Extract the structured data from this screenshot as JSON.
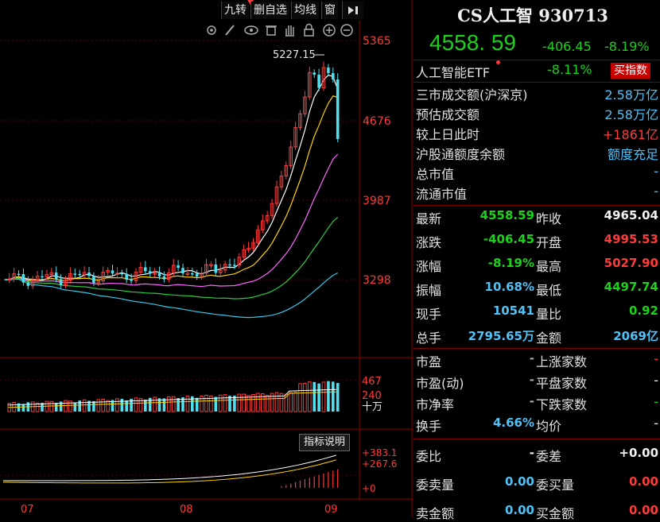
{
  "toolbar": {
    "btn_jiuzhuan": "九转",
    "btn_delete_watch": "删自选",
    "btn_ma": "均线",
    "btn_window": "窗",
    "btn_arrow": "▶"
  },
  "chart_icons": [
    "settings-icon",
    "pen-icon",
    "eye-icon",
    "trash-icon",
    "hand-icon",
    "lock-icon",
    "zoom-in-icon",
    "zoom-out-icon"
  ],
  "main_chart": {
    "y_ticks": [
      "5365",
      "4676",
      "3987",
      "3298"
    ],
    "high_label": "5227.15",
    "x_labels": [
      "07",
      "08",
      "09"
    ]
  },
  "volume_panel": {
    "top_value": "467",
    "mid_value": "240",
    "unit": "十万"
  },
  "indicator_panel": {
    "button": "指标说明",
    "values": [
      "+383.1",
      "+267.6",
      "+0"
    ]
  },
  "header": {
    "title": "CS人工智 930713",
    "price": "4558. 59",
    "change": "-406.45",
    "change_pct": "-8.19%"
  },
  "etf": {
    "name": "人工智能ETF",
    "change_pct": "-8.11%",
    "button": "买指数"
  },
  "market_info": [
    {
      "label": "三市成交额(沪深京)",
      "value": "2.58万亿",
      "color": "cyan"
    },
    {
      "label": "预估成交额",
      "value": "2.58万亿",
      "color": "cyan"
    },
    {
      "label": "较上日此时",
      "value": "+1861亿",
      "color": "red"
    },
    {
      "label": "沪股通额度余额",
      "value": "额度充足",
      "color": "cyan"
    },
    {
      "label": "总市值",
      "value": "-",
      "color": "cyan"
    },
    {
      "label": "流通市值",
      "value": "-",
      "color": "cyan"
    }
  ],
  "quote": {
    "rows": [
      {
        "l1": "最新",
        "v1": "4558.59",
        "c1": "green",
        "l2": "昨收",
        "v2": "4965.04",
        "c2": "white"
      },
      {
        "l1": "涨跌",
        "v1": "-406.45",
        "c1": "green",
        "l2": "开盘",
        "v2": "4995.53",
        "c2": "red"
      },
      {
        "l1": "涨幅",
        "v1": "-8.19%",
        "c1": "green",
        "l2": "最高",
        "v2": "5027.90",
        "c2": "red"
      },
      {
        "l1": "振幅",
        "v1": "10.68%",
        "c1": "cyan",
        "l2": "最低",
        "v2": "4497.74",
        "c2": "green"
      },
      {
        "l1": "现手",
        "v1": "10541",
        "c1": "cyan",
        "l2": "量比",
        "v2": "0.92",
        "c2": "green"
      },
      {
        "l1": "总手",
        "v1": "2795.65万",
        "c1": "cyan",
        "l2": "金额",
        "v2": "2069亿",
        "c2": "cyan"
      }
    ]
  },
  "valuation": {
    "rows": [
      {
        "l1": "市盈",
        "v1": "-",
        "l2": "上涨家数",
        "v2": "-",
        "c2": "red"
      },
      {
        "l1": "市盈(动)",
        "v1": "-",
        "l2": "平盘家数",
        "v2": "-",
        "c2": "white"
      },
      {
        "l1": "市净率",
        "v1": "-",
        "l2": "下跌家数",
        "v2": "-",
        "c2": "green"
      },
      {
        "l1": "换手",
        "v1": "4.66%",
        "l2": "均价",
        "v2": "-",
        "c2": "white"
      }
    ]
  },
  "order": {
    "rows": [
      {
        "l1": "委比",
        "v1": "-",
        "c1": "white",
        "l2": "委差",
        "v2": "+0.00",
        "c2": "white"
      },
      {
        "l1": "委卖量",
        "v1": "0.00",
        "c1": "cyan",
        "l2": "委买量",
        "v2": "0.00",
        "c2": "red"
      },
      {
        "l1": "卖金额",
        "v1": "0.00",
        "c1": "cyan",
        "l2": "买金额",
        "v2": "0.00",
        "c2": "red"
      }
    ]
  },
  "colors": {
    "up": "#ff3a3a",
    "down": "#4fe0f0",
    "ma5": "#ffffff",
    "ma10": "#ffd400",
    "ma20": "#ff66ff",
    "ma30": "#2ecc40",
    "ma60": "#33c9e8"
  }
}
